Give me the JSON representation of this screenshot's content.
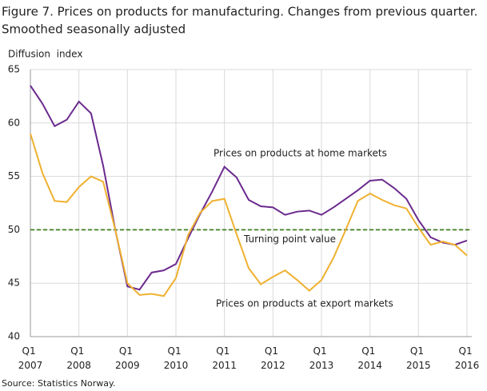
{
  "chart_data": {
    "type": "line",
    "title": [
      "Figure 7. Prices on products for manufacturing. Changes from previous quarter.",
      "Smoothed seasonally adjusted"
    ],
    "y_label": "Diffusion  index",
    "source": "Source: Statistics Norway.",
    "categories": [
      "Q1 2007",
      null,
      null,
      null,
      "Q1 2008",
      null,
      null,
      null,
      "Q1 2009",
      null,
      null,
      null,
      "Q1 2010",
      null,
      null,
      null,
      "Q1 2011",
      null,
      null,
      null,
      "Q1 2012",
      null,
      null,
      null,
      "Q1 2013",
      null,
      null,
      null,
      "Q1 2014",
      null,
      null,
      null,
      "Q1 2015",
      null,
      null,
      null,
      "Q1 2016"
    ],
    "series": [
      {
        "name": "Prices on products at home markets",
        "color": "#6b2a8e",
        "values": [
          63.5,
          61.8,
          59.7,
          60.3,
          62.0,
          60.9,
          56.0,
          50.0,
          44.7,
          44.4,
          46.0,
          46.2,
          46.8,
          49.2,
          51.5,
          53.6,
          55.9,
          54.9,
          52.8,
          52.2,
          52.1,
          51.4,
          51.7,
          51.8,
          51.4,
          52.1,
          52.9,
          53.7,
          54.6,
          54.7,
          53.9,
          52.9,
          50.9,
          49.3,
          48.8,
          48.6,
          49.0
        ]
      },
      {
        "name": "Prices on products at export markets",
        "color": "#efb130",
        "values": [
          59.0,
          55.3,
          52.7,
          52.6,
          54.0,
          55.0,
          54.5,
          50.0,
          45.0,
          43.9,
          44.0,
          43.8,
          45.5,
          49.5,
          51.6,
          52.7,
          52.9,
          49.6,
          46.4,
          44.9,
          45.6,
          46.2,
          45.3,
          44.3,
          45.3,
          47.4,
          50.0,
          52.7,
          53.4,
          52.8,
          52.3,
          52.0,
          50.2,
          48.6,
          48.9,
          48.6,
          47.6
        ]
      }
    ],
    "reference_line": {
      "label": "Turning point value",
      "value": 50,
      "color": "#3f7f1f"
    },
    "ylim": [
      40,
      65
    ],
    "yticks": [
      40,
      45,
      50,
      55,
      60,
      65
    ],
    "grid": true
  }
}
